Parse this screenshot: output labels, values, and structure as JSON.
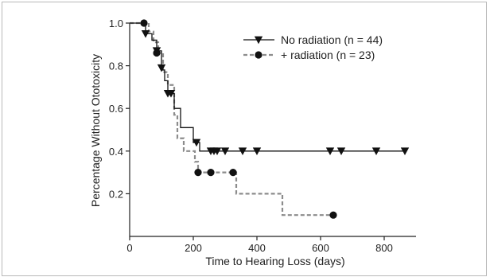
{
  "chart_data": {
    "type": "line",
    "subtype": "kaplan-meier",
    "xlabel": "Time to Hearing Loss (days)",
    "ylabel": "Percentage Without Ototoxicity",
    "xlim": [
      0,
      900
    ],
    "ylim": [
      0,
      1.0
    ],
    "xticks": [
      0,
      200,
      400,
      600,
      800
    ],
    "yticks": [
      0.2,
      0.4,
      0.6,
      0.8,
      1.0
    ],
    "xtick_labels": [
      "0",
      "200",
      "400",
      "600",
      "800"
    ],
    "ytick_labels": [
      "0.2",
      "0.4",
      "0.6",
      "0.8",
      "1.0"
    ],
    "legend_position": "top-right",
    "series": [
      {
        "name": "No radiation (n = 44)",
        "color": "#111111",
        "line_style": "solid",
        "marker": "triangle-down",
        "steps": [
          [
            0,
            1.0
          ],
          [
            50,
            0.95
          ],
          [
            70,
            0.92
          ],
          [
            85,
            0.87
          ],
          [
            100,
            0.78
          ],
          [
            110,
            0.73
          ],
          [
            120,
            0.67
          ],
          [
            140,
            0.6
          ],
          [
            160,
            0.51
          ],
          [
            190,
            0.51
          ],
          [
            200,
            0.44
          ],
          [
            220,
            0.4
          ],
          [
            870,
            0.4
          ]
        ],
        "markers": [
          [
            50,
            0.95
          ],
          [
            85,
            0.87
          ],
          [
            100,
            0.79
          ],
          [
            120,
            0.67
          ],
          [
            130,
            0.67
          ],
          [
            210,
            0.44
          ],
          [
            255,
            0.4
          ],
          [
            265,
            0.4
          ],
          [
            275,
            0.4
          ],
          [
            300,
            0.4
          ],
          [
            355,
            0.4
          ],
          [
            400,
            0.4
          ],
          [
            630,
            0.4
          ],
          [
            665,
            0.4
          ],
          [
            775,
            0.4
          ],
          [
            865,
            0.4
          ]
        ]
      },
      {
        "name": "+ radiation (n = 23)",
        "color": "#8c8c8c",
        "line_style": "dashed",
        "marker": "circle",
        "steps": [
          [
            0,
            1.0
          ],
          [
            60,
            0.96
          ],
          [
            75,
            0.91
          ],
          [
            90,
            0.86
          ],
          [
            105,
            0.77
          ],
          [
            120,
            0.71
          ],
          [
            140,
            0.57
          ],
          [
            150,
            0.46
          ],
          [
            170,
            0.4
          ],
          [
            205,
            0.35
          ],
          [
            215,
            0.3
          ],
          [
            330,
            0.3
          ],
          [
            335,
            0.2
          ],
          [
            475,
            0.2
          ],
          [
            480,
            0.1
          ],
          [
            640,
            0.1
          ]
        ],
        "markers": [
          [
            45,
            1.0
          ],
          [
            85,
            0.86
          ],
          [
            215,
            0.3
          ],
          [
            255,
            0.3
          ],
          [
            325,
            0.3
          ],
          [
            640,
            0.1
          ]
        ]
      }
    ]
  }
}
